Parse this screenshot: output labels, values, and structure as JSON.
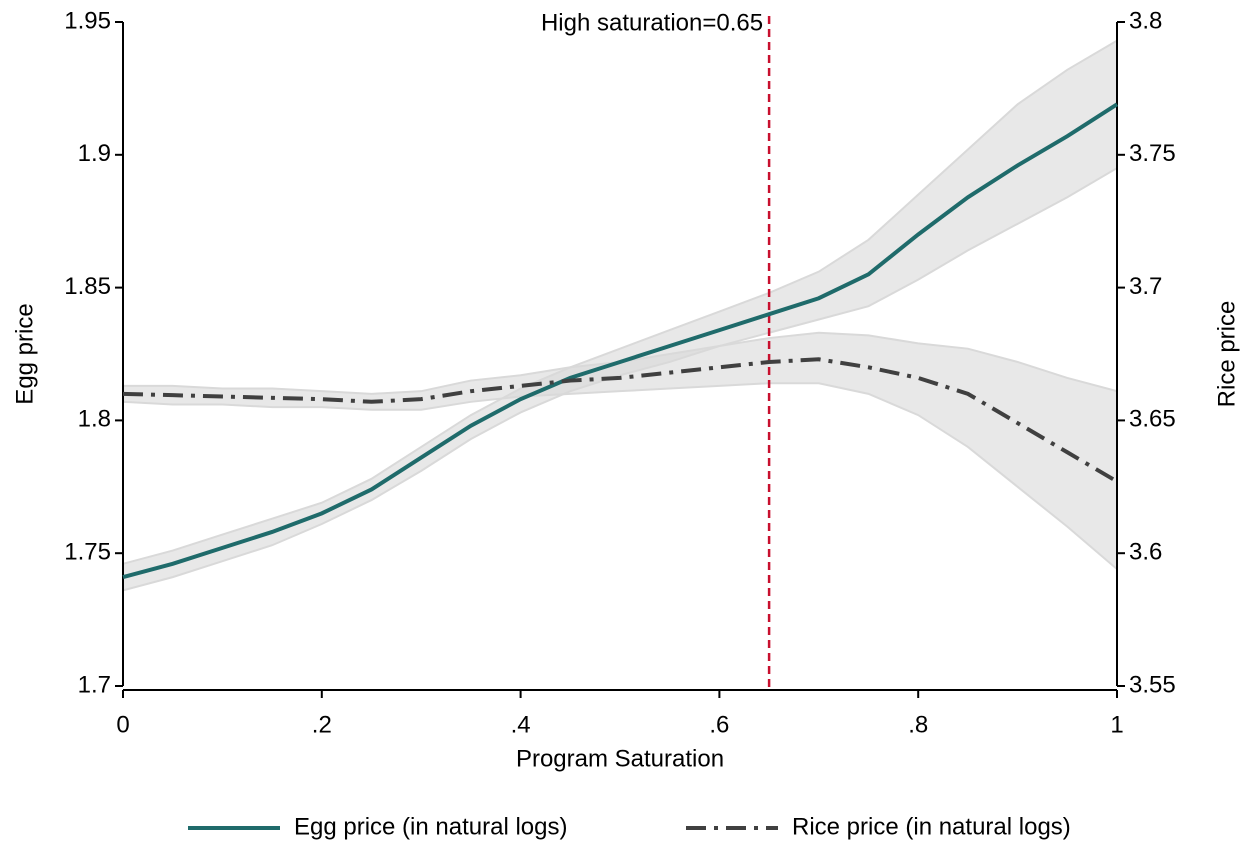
{
  "chart_data": {
    "type": "line",
    "x_label": "Program Saturation",
    "y_label": "Egg price",
    "y2_label": "Rice price",
    "x": [
      0,
      0.05,
      0.1,
      0.15,
      0.2,
      0.25,
      0.3,
      0.35,
      0.4,
      0.45,
      0.5,
      0.55,
      0.6,
      0.65,
      0.7,
      0.75,
      0.8,
      0.85,
      0.9,
      0.95,
      1
    ],
    "series": [
      {
        "name": "Egg price (in natural logs)",
        "color": "#1f6b6b",
        "dash": "solid",
        "values": [
          1.741,
          1.746,
          1.752,
          1.758,
          1.765,
          1.774,
          1.786,
          1.798,
          1.808,
          1.816,
          1.822,
          1.828,
          1.834,
          1.84,
          1.846,
          1.855,
          1.87,
          1.884,
          1.896,
          1.907,
          1.919
        ],
        "lower": [
          1.736,
          1.741,
          1.747,
          1.753,
          1.761,
          1.77,
          1.781,
          1.793,
          1.803,
          1.811,
          1.817,
          1.822,
          1.828,
          1.833,
          1.838,
          1.843,
          1.853,
          1.864,
          1.874,
          1.884,
          1.895
        ],
        "upper": [
          1.746,
          1.751,
          1.757,
          1.763,
          1.769,
          1.778,
          1.79,
          1.802,
          1.812,
          1.82,
          1.827,
          1.834,
          1.841,
          1.848,
          1.856,
          1.868,
          1.885,
          1.902,
          1.919,
          1.932,
          1.943
        ]
      },
      {
        "name": "Rice price (in natural logs)",
        "color": "#404040",
        "dash": "dashdot",
        "axis": "y2",
        "values": [
          3.66,
          3.6595,
          3.659,
          3.6585,
          3.658,
          3.657,
          3.658,
          3.661,
          3.663,
          3.665,
          3.666,
          3.668,
          3.67,
          3.672,
          3.673,
          3.67,
          3.666,
          3.66,
          3.649,
          3.638,
          3.627
        ],
        "lower": [
          3.657,
          3.656,
          3.656,
          3.655,
          3.655,
          3.654,
          3.654,
          3.657,
          3.659,
          3.66,
          3.661,
          3.662,
          3.663,
          3.664,
          3.664,
          3.66,
          3.652,
          3.64,
          3.625,
          3.61,
          3.594
        ],
        "upper": [
          3.663,
          3.663,
          3.662,
          3.662,
          3.661,
          3.66,
          3.661,
          3.665,
          3.667,
          3.67,
          3.672,
          3.675,
          3.678,
          3.681,
          3.683,
          3.682,
          3.679,
          3.677,
          3.672,
          3.666,
          3.661
        ]
      }
    ],
    "xlim": [
      0,
      1
    ],
    "xticks": [
      0,
      {
        "value": 0.2,
        "label": ".2"
      },
      {
        "value": 0.4,
        "label": ".4"
      },
      {
        "value": 0.6,
        "label": ".6"
      },
      {
        "value": 0.8,
        "label": ".8"
      },
      1
    ],
    "ylim": [
      1.7,
      1.95
    ],
    "yticks": [
      1.7,
      1.75,
      1.8,
      1.85,
      1.9,
      1.95
    ],
    "y2lim": [
      3.55,
      3.8
    ],
    "y2ticks": [
      3.55,
      3.6,
      3.65,
      3.7,
      3.75,
      3.8
    ],
    "vline": {
      "value": 0.65,
      "label": "High saturation=0.65",
      "color": "#c8102e"
    },
    "band_color": "#d9d9d9",
    "legend": "bottom"
  }
}
